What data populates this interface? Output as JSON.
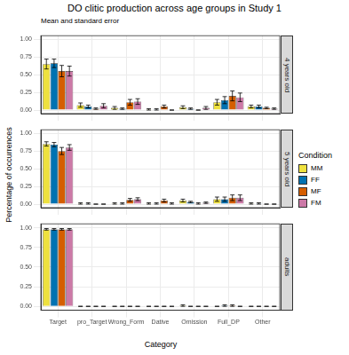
{
  "chart_data": {
    "type": "bar",
    "title": "DO clitic production across age groups in Study 1",
    "subtitle": "Mean and standard error",
    "x_label": "Category",
    "y_label": "Percentage of occurrences",
    "legend_title": "Condition",
    "legend": "right",
    "grid": true,
    "categories": [
      "Target",
      "pro_Target",
      "Wrong_Form",
      "Dative",
      "Omission",
      "Full_DP",
      "Other"
    ],
    "ylim": [
      -0.05,
      1.05
    ],
    "yticks": [
      {
        "value": 0,
        "label": "0.00"
      },
      {
        "value": 0.25,
        "label": "0.25"
      },
      {
        "value": 0.5,
        "label": "0.50"
      },
      {
        "value": 0.75,
        "label": "0.75"
      },
      {
        "value": 1,
        "label": "1.00"
      }
    ],
    "panels": [
      {
        "label": "4 years old",
        "series": [
          {
            "name": "MM",
            "color": "#EEE13F",
            "values": [
              0.65,
              0.07,
              0.03,
              0.01,
              0.04,
              0.11,
              0.05
            ],
            "errors": [
              0.07,
              0.03,
              0.02,
              0.01,
              0.02,
              0.04,
              0.02
            ]
          },
          {
            "name": "FF",
            "color": "#0072B2",
            "values": [
              0.66,
              0.05,
              0.02,
              0.01,
              0.02,
              0.14,
              0.05
            ],
            "errors": [
              0.06,
              0.02,
              0.01,
              0.01,
              0.01,
              0.05,
              0.02
            ]
          },
          {
            "name": "MF",
            "color": "#D55E00",
            "values": [
              0.55,
              0.02,
              0.11,
              0.05,
              0,
              0.2,
              0.03
            ],
            "errors": [
              0.08,
              0.01,
              0.04,
              0.02,
              0,
              0.07,
              0.01
            ]
          },
          {
            "name": "FM",
            "color": "#CC79A7",
            "values": [
              0.55,
              0.06,
              0.12,
              0,
              0.03,
              0.18,
              0.02
            ],
            "errors": [
              0.07,
              0.03,
              0.04,
              0,
              0.02,
              0.06,
              0.01
            ]
          }
        ]
      },
      {
        "label": "5 years old",
        "series": [
          {
            "name": "MM",
            "color": "#EEE13F",
            "values": [
              0.85,
              0.01,
              0.01,
              0.01,
              0.05,
              0.07,
              0.01
            ],
            "errors": [
              0.03,
              0.01,
              0.01,
              0.01,
              0.02,
              0.03,
              0.01
            ]
          },
          {
            "name": "FF",
            "color": "#0072B2",
            "values": [
              0.84,
              0.01,
              0.01,
              0.01,
              0.03,
              0.07,
              0.01
            ],
            "errors": [
              0.03,
              0.01,
              0.01,
              0.01,
              0.01,
              0.03,
              0.01
            ]
          },
          {
            "name": "MF",
            "color": "#D55E00",
            "values": [
              0.75,
              0,
              0.06,
              0.05,
              0.01,
              0.09,
              0
            ],
            "errors": [
              0.05,
              0,
              0.02,
              0.02,
              0.01,
              0.04,
              0
            ]
          },
          {
            "name": "FM",
            "color": "#CC79A7",
            "values": [
              0.8,
              0,
              0.07,
              0.01,
              0.02,
              0.09,
              0
            ],
            "errors": [
              0.04,
              0,
              0.02,
              0.01,
              0.01,
              0.04,
              0
            ]
          }
        ]
      },
      {
        "label": "adults",
        "series": [
          {
            "name": "MM",
            "color": "#EEE13F",
            "values": [
              0.98,
              0,
              0,
              0,
              0.01,
              0,
              0
            ],
            "errors": [
              0.01,
              0,
              0,
              0,
              0.01,
              0,
              0
            ]
          },
          {
            "name": "FF",
            "color": "#0072B2",
            "values": [
              0.98,
              0,
              0,
              0,
              0,
              0.01,
              0
            ],
            "errors": [
              0.01,
              0,
              0,
              0,
              0,
              0.01,
              0
            ]
          },
          {
            "name": "MF",
            "color": "#D55E00",
            "values": [
              0.98,
              0,
              0,
              0,
              0,
              0.01,
              0
            ],
            "errors": [
              0.01,
              0,
              0,
              0,
              0,
              0.01,
              0
            ]
          },
          {
            "name": "FM",
            "color": "#CC79A7",
            "values": [
              0.98,
              0,
              0,
              0,
              0,
              0,
              0
            ],
            "errors": [
              0.01,
              0,
              0,
              0,
              0,
              0,
              0
            ]
          }
        ]
      }
    ]
  }
}
